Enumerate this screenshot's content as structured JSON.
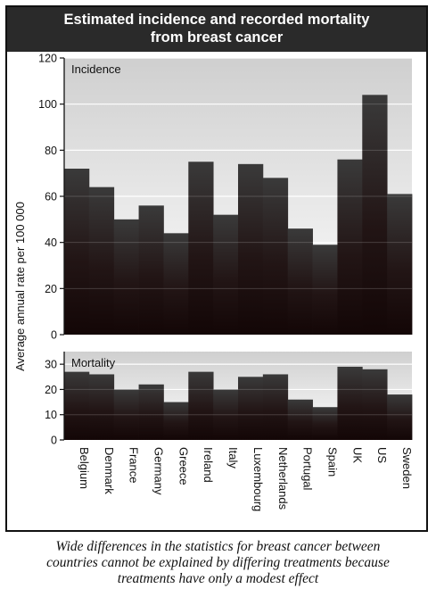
{
  "title_line1": "Estimated incidence and recorded mortality",
  "title_line2": "from breast cancer",
  "caption": [
    "Wide differences in the statistics for breast cancer between",
    "countries cannot be explained by differing treatments because",
    "treatments have only a modest effect"
  ],
  "chart_data": [
    {
      "type": "bar",
      "panel_label": "Incidence",
      "ylabel": "Average annual rate per 100 000",
      "ylim": [
        0,
        120
      ],
      "yticks": [
        0,
        20,
        40,
        60,
        80,
        100,
        120
      ],
      "categories": [
        "Belgium",
        "Denmark",
        "France",
        "Germany",
        "Greece",
        "Ireland",
        "Italy",
        "Luxembourg",
        "Netherlands",
        "Portugal",
        "Spain",
        "UK",
        "US",
        "Sweden"
      ],
      "values": [
        72,
        64,
        50,
        56,
        44,
        75,
        52,
        74,
        68,
        46,
        39,
        76,
        104,
        61
      ],
      "grid": true,
      "colors": {
        "bar_top": "#3a3a3a",
        "bar_bottom": "#130606",
        "background_top": "#cfcfcf",
        "background_bottom": "#ffffff"
      }
    },
    {
      "type": "bar",
      "panel_label": "Mortality",
      "ylim": [
        0,
        35
      ],
      "yticks": [
        0,
        10,
        20,
        30
      ],
      "categories": [
        "Belgium",
        "Denmark",
        "France",
        "Germany",
        "Greece",
        "Ireland",
        "Italy",
        "Luxembourg",
        "Netherlands",
        "Portugal",
        "Spain",
        "UK",
        "US",
        "Sweden"
      ],
      "values": [
        27,
        26,
        20,
        22,
        15,
        27,
        20,
        25,
        26,
        16,
        13,
        29,
        28,
        18
      ],
      "grid": true,
      "colors": {
        "bar_top": "#3a3a3a",
        "bar_bottom": "#130606",
        "background_top": "#cfcfcf",
        "background_bottom": "#ffffff"
      }
    }
  ]
}
